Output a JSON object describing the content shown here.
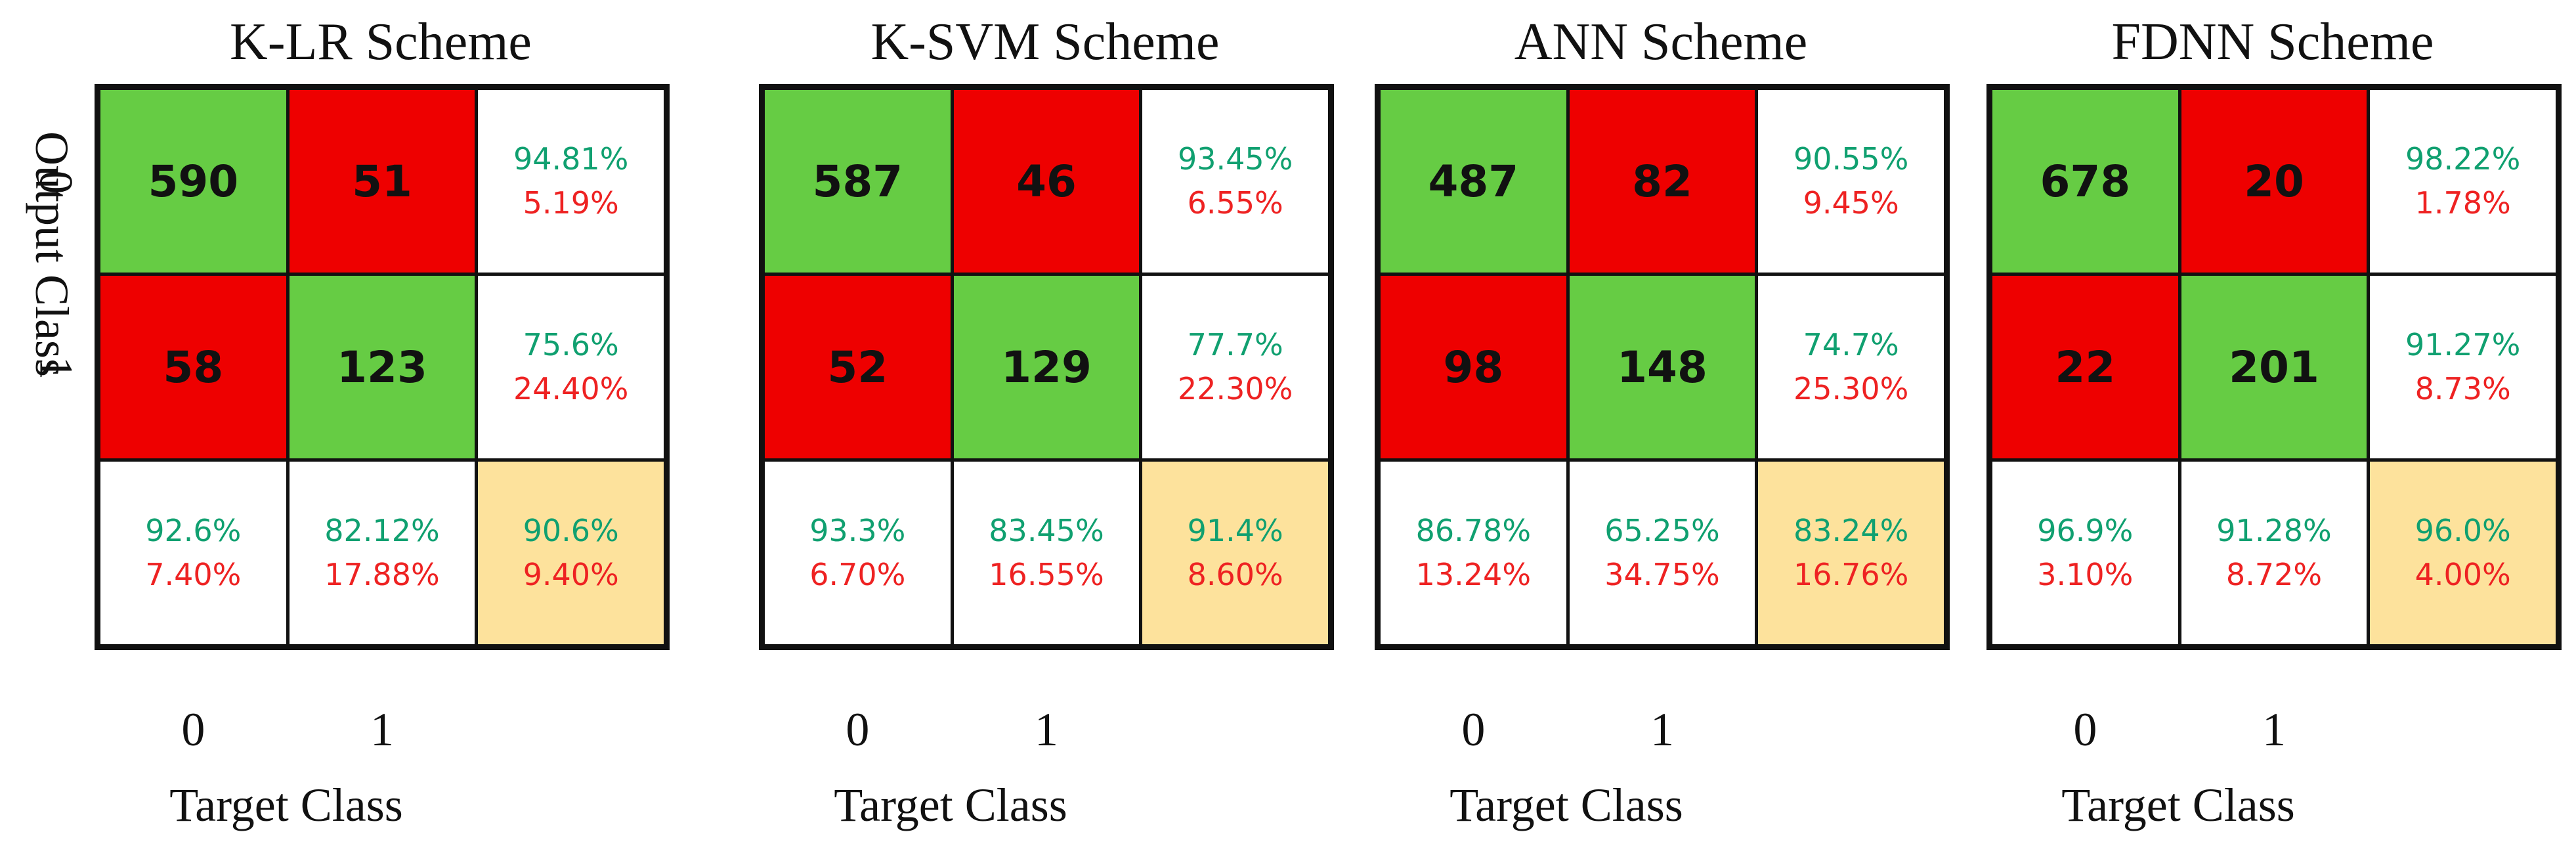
{
  "chart_data": [
    {
      "type": "table",
      "title": "K-LR Scheme",
      "xlabel": "Target Class",
      "ylabel": "Output Class",
      "x_ticks": [
        "0",
        "1"
      ],
      "y_ticks": [
        "0",
        "1"
      ],
      "counts": [
        [
          590,
          51
        ],
        [
          58,
          123
        ]
      ],
      "row_pct": [
        [
          "94.81%",
          "5.19%"
        ],
        [
          "75.6%",
          "24.40%"
        ]
      ],
      "col_pct": [
        [
          "92.6%",
          "7.40%"
        ],
        [
          "82.12%",
          "17.88%"
        ]
      ],
      "overall_pct": [
        "90.6%",
        "9.40%"
      ]
    },
    {
      "type": "table",
      "title": "K-SVM Scheme",
      "xlabel": "Target Class",
      "ylabel": "",
      "x_ticks": [
        "0",
        "1"
      ],
      "y_ticks": [],
      "counts": [
        [
          587,
          46
        ],
        [
          52,
          129
        ]
      ],
      "row_pct": [
        [
          "93.45%",
          "6.55%"
        ],
        [
          "77.7%",
          "22.30%"
        ]
      ],
      "col_pct": [
        [
          "93.3%",
          "6.70%"
        ],
        [
          "83.45%",
          "16.55%"
        ]
      ],
      "overall_pct": [
        "91.4%",
        "8.60%"
      ]
    },
    {
      "type": "table",
      "title": "ANN Scheme",
      "xlabel": "Target Class",
      "ylabel": "",
      "x_ticks": [
        "0",
        "1"
      ],
      "y_ticks": [],
      "counts": [
        [
          487,
          82
        ],
        [
          98,
          148
        ]
      ],
      "row_pct": [
        [
          "90.55%",
          "9.45%"
        ],
        [
          "74.7%",
          "25.30%"
        ]
      ],
      "col_pct": [
        [
          "86.78%",
          "13.24%"
        ],
        [
          "65.25%",
          "34.75%"
        ]
      ],
      "overall_pct": [
        "83.24%",
        "16.76%"
      ]
    },
    {
      "type": "table",
      "title": "FDNN Scheme",
      "xlabel": "Target Class",
      "ylabel": "",
      "x_ticks": [
        "0",
        "1"
      ],
      "y_ticks": [],
      "counts": [
        [
          678,
          20
        ],
        [
          22,
          201
        ]
      ],
      "row_pct": [
        [
          "98.22%",
          "1.78%"
        ],
        [
          "91.27%",
          "8.73%"
        ]
      ],
      "col_pct": [
        [
          "96.9%",
          "3.10%"
        ],
        [
          "91.28%",
          "8.72%"
        ]
      ],
      "overall_pct": [
        "96.0%",
        "4.00%"
      ]
    }
  ],
  "colors": {
    "correct": "#66cc44",
    "error": "#ee0000",
    "summary": "#fde29c",
    "good_text": "#10a070",
    "bad_text": "#ee2222"
  }
}
